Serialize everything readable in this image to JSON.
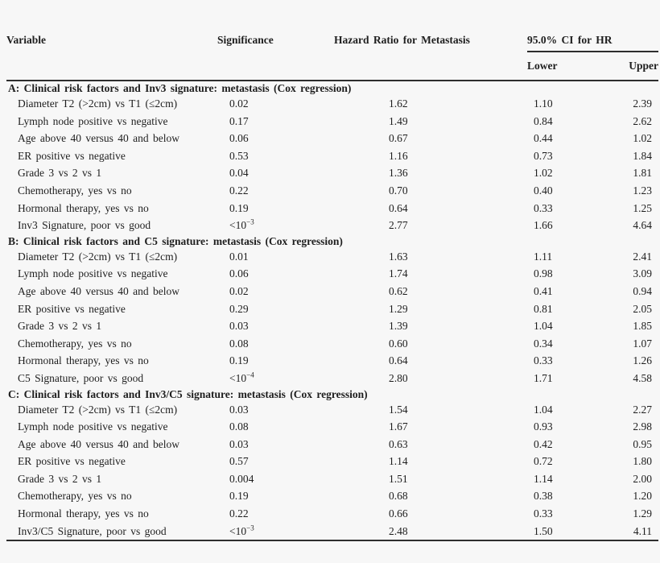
{
  "table": {
    "columns": {
      "variable": "Variable",
      "significance": "Significance",
      "hazard_ratio": "Hazard Ratio for Metastasis",
      "ci_group": "95.0% CI for HR",
      "ci_lower": "Lower",
      "ci_upper": "Upper"
    },
    "sections": [
      {
        "header": "A: Clinical risk factors and Inv3 signature: metastasis (Cox regression)",
        "rows": [
          {
            "variable": "Diameter T2 (>2cm) vs T1 (≤2cm)",
            "significance": "0.02",
            "hazard_ratio": "1.62",
            "lower": "1.10",
            "upper": "2.39"
          },
          {
            "variable": "Lymph node positive vs negative",
            "significance": "0.17",
            "hazard_ratio": "1.49",
            "lower": "0.84",
            "upper": "2.62"
          },
          {
            "variable": "Age above 40 versus 40 and below",
            "significance": "0.06",
            "hazard_ratio": "0.67",
            "lower": "0.44",
            "upper": "1.02"
          },
          {
            "variable": "ER positive vs negative",
            "significance": "0.53",
            "hazard_ratio": "1.16",
            "lower": "0.73",
            "upper": "1.84"
          },
          {
            "variable": "Grade 3 vs 2 vs 1",
            "significance": "0.04",
            "hazard_ratio": "1.36",
            "lower": "1.02",
            "upper": "1.81"
          },
          {
            "variable": "Chemotherapy, yes vs no",
            "significance": "0.22",
            "hazard_ratio": "0.70",
            "lower": "0.40",
            "upper": "1.23"
          },
          {
            "variable": "Hormonal therapy, yes vs no",
            "significance": "0.19",
            "hazard_ratio": "0.64",
            "lower": "0.33",
            "upper": "1.25"
          },
          {
            "variable": "Inv3 Signature, poor vs good",
            "significance": "<10^−3",
            "hazard_ratio": "2.77",
            "lower": "1.66",
            "upper": "4.64"
          }
        ]
      },
      {
        "header": "B: Clinical risk factors and C5 signature: metastasis (Cox regression)",
        "rows": [
          {
            "variable": "Diameter T2 (>2cm) vs T1 (≤2cm)",
            "significance": "0.01",
            "hazard_ratio": "1.63",
            "lower": "1.11",
            "upper": "2.41"
          },
          {
            "variable": "Lymph node positive vs negative",
            "significance": "0.06",
            "hazard_ratio": "1.74",
            "lower": "0.98",
            "upper": "3.09"
          },
          {
            "variable": "Age above 40 versus 40 and below",
            "significance": "0.02",
            "hazard_ratio": "0.62",
            "lower": "0.41",
            "upper": "0.94"
          },
          {
            "variable": "ER positive vs negative",
            "significance": "0.29",
            "hazard_ratio": "1.29",
            "lower": "0.81",
            "upper": "2.05"
          },
          {
            "variable": "Grade 3 vs 2 vs 1",
            "significance": "0.03",
            "hazard_ratio": "1.39",
            "lower": "1.04",
            "upper": "1.85"
          },
          {
            "variable": "Chemotherapy, yes vs no",
            "significance": "0.08",
            "hazard_ratio": "0.60",
            "lower": "0.34",
            "upper": "1.07"
          },
          {
            "variable": "Hormonal therapy, yes vs no",
            "significance": "0.19",
            "hazard_ratio": "0.64",
            "lower": "0.33",
            "upper": "1.26"
          },
          {
            "variable": "C5 Signature, poor vs good",
            "significance": "<10^−4",
            "hazard_ratio": "2.80",
            "lower": "1.71",
            "upper": "4.58"
          }
        ]
      },
      {
        "header": "C: Clinical risk factors and Inv3/C5 signature: metastasis (Cox regression)",
        "rows": [
          {
            "variable": "Diameter T2 (>2cm) vs T1 (≤2cm)",
            "significance": "0.03",
            "hazard_ratio": "1.54",
            "lower": "1.04",
            "upper": "2.27"
          },
          {
            "variable": "Lymph node positive vs negative",
            "significance": "0.08",
            "hazard_ratio": "1.67",
            "lower": "0.93",
            "upper": "2.98"
          },
          {
            "variable": "Age above 40 versus 40 and below",
            "significance": "0.03",
            "hazard_ratio": "0.63",
            "lower": "0.42",
            "upper": "0.95"
          },
          {
            "variable": "ER positive vs negative",
            "significance": "0.57",
            "hazard_ratio": "1.14",
            "lower": "0.72",
            "upper": "1.80"
          },
          {
            "variable": "Grade 3 vs 2 vs 1",
            "significance": "0.004",
            "hazard_ratio": "1.51",
            "lower": "1.14",
            "upper": "2.00"
          },
          {
            "variable": "Chemotherapy, yes vs no",
            "significance": "0.19",
            "hazard_ratio": "0.68",
            "lower": "0.38",
            "upper": "1.20"
          },
          {
            "variable": "Hormonal therapy, yes vs no",
            "significance": "0.22",
            "hazard_ratio": "0.66",
            "lower": "0.33",
            "upper": "1.29"
          },
          {
            "variable": "Inv3/C5 Signature, poor vs good",
            "significance": "<10^−3",
            "hazard_ratio": "2.48",
            "lower": "1.50",
            "upper": "4.11"
          }
        ]
      }
    ]
  },
  "colors": {
    "background": "#f7f7f7",
    "text": "#1e1e1e",
    "rule": "#2e2e2e"
  }
}
